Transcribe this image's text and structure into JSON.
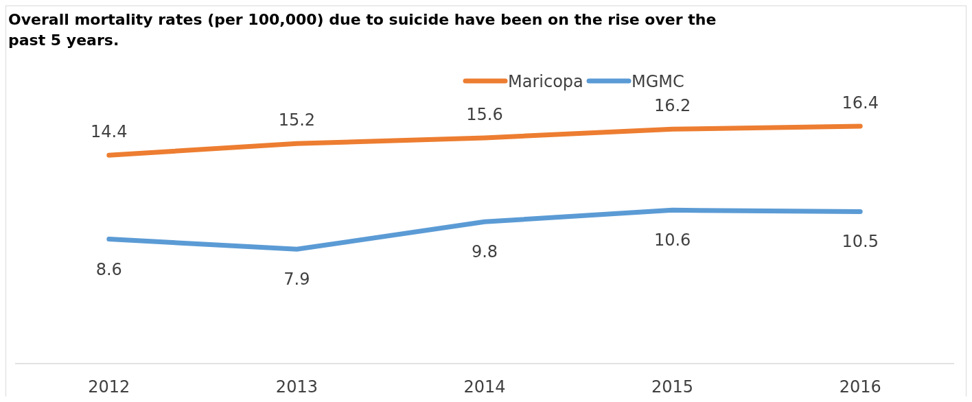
{
  "chart_data": {
    "type": "line",
    "title": "Overall mortality rates (per 100,000) due to suicide have been on the rise over the past 5 years.",
    "categories": [
      "2012",
      "2013",
      "2014",
      "2015",
      "2016"
    ],
    "series": [
      {
        "name": "Maricopa",
        "color": "#ed7d31",
        "values": [
          14.4,
          15.2,
          15.6,
          16.2,
          16.4
        ]
      },
      {
        "name": "MGMC",
        "color": "#5b9bd5",
        "values": [
          8.6,
          7.9,
          9.8,
          10.6,
          10.5
        ]
      }
    ],
    "tick_labels": "x",
    "data_labels": true,
    "legend": "top",
    "marker": "none",
    "line_style": "solid"
  }
}
